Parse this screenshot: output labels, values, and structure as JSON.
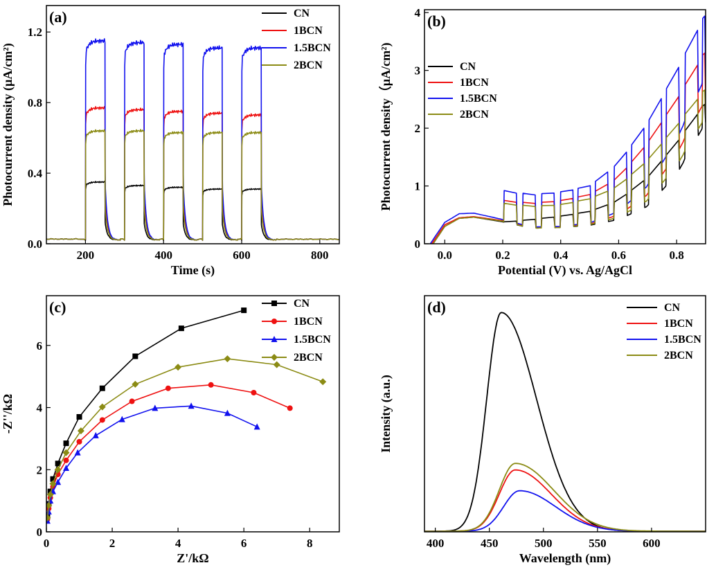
{
  "colors": {
    "CN": "#000000",
    "1BCN": "#ee1111",
    "1.5BCN": "#1111ee",
    "2BCN": "#8b8b14"
  },
  "chart_data": [
    {
      "id": "a",
      "type": "line",
      "panel_label": "(a)",
      "xlabel": "Time (s)",
      "ylabel": "Photocurrent density (µA/cm²)",
      "xlim": [
        100,
        850
      ],
      "ylim": [
        0,
        1.35
      ],
      "xticks": [
        200,
        400,
        600,
        800
      ],
      "yticks": [
        0.0,
        0.4,
        0.8,
        1.2
      ],
      "xtick_labels": [
        "200",
        "400",
        "600",
        "800"
      ],
      "ytick_labels": [
        "0.0",
        "0.4",
        "0.8",
        "1.2"
      ],
      "legend_position": "top-right",
      "light_on_off": [
        [
          200,
          250
        ],
        [
          300,
          350
        ],
        [
          400,
          450
        ],
        [
          500,
          550
        ],
        [
          600,
          650
        ]
      ],
      "series": [
        {
          "name": "CN",
          "dark": 0.02,
          "on_plateau": [
            0.35,
            0.33,
            0.32,
            0.31,
            0.31
          ]
        },
        {
          "name": "1BCN",
          "dark": 0.02,
          "on_plateau": [
            0.77,
            0.76,
            0.75,
            0.74,
            0.73
          ]
        },
        {
          "name": "1.5BCN",
          "dark": 0.02,
          "on_plateau": [
            1.15,
            1.14,
            1.13,
            1.11,
            1.11
          ]
        },
        {
          "name": "2BCN",
          "dark": 0.02,
          "on_plateau": [
            0.64,
            0.64,
            0.63,
            0.63,
            0.63
          ]
        }
      ]
    },
    {
      "id": "b",
      "type": "line",
      "panel_label": "(b)",
      "xlabel": "Potential (V) vs. Ag/AgCl",
      "ylabel": "Photocurrent density（µA/cm²)",
      "xlim": [
        -0.07,
        0.9
      ],
      "ylim": [
        0,
        4.05
      ],
      "xticks": [
        0.0,
        0.2,
        0.4,
        0.6,
        0.8
      ],
      "yticks": [
        0,
        1,
        2,
        3,
        4
      ],
      "xtick_labels": [
        "0.0",
        "0.2",
        "0.4",
        "0.6",
        "0.8"
      ],
      "ytick_labels": [
        "0",
        "1",
        "2",
        "3",
        "4"
      ],
      "legend_position": "top-left",
      "series": [
        {
          "name": "CN",
          "dark_points": [
            [
              -0.04,
              0.0
            ],
            [
              0.0,
              0.3
            ],
            [
              0.05,
              0.44
            ],
            [
              0.1,
              0.46
            ],
            [
              0.2,
              0.38
            ],
            [
              0.3,
              0.27
            ],
            [
              0.4,
              0.28
            ],
            [
              0.5,
              0.32
            ],
            [
              0.6,
              0.42
            ],
            [
              0.7,
              0.65
            ],
            [
              0.8,
              1.2
            ],
            [
              0.9,
              2.1
            ]
          ],
          "light_points": [
            [
              0.21,
              0.38
            ],
            [
              0.3,
              0.42
            ],
            [
              0.4,
              0.48
            ],
            [
              0.5,
              0.56
            ],
            [
              0.6,
              0.75
            ],
            [
              0.7,
              1.15
            ],
            [
              0.8,
              1.75
            ],
            [
              0.9,
              2.45
            ]
          ]
        },
        {
          "name": "1BCN",
          "dark_points": [
            [
              -0.045,
              0.0
            ],
            [
              0.0,
              0.33
            ],
            [
              0.05,
              0.45
            ],
            [
              0.1,
              0.47
            ],
            [
              0.2,
              0.4
            ],
            [
              0.3,
              0.28
            ],
            [
              0.4,
              0.29
            ],
            [
              0.5,
              0.34
            ],
            [
              0.6,
              0.5
            ],
            [
              0.7,
              0.85
            ],
            [
              0.8,
              1.55
            ],
            [
              0.9,
              2.5
            ]
          ],
          "light_points": [
            [
              0.21,
              0.75
            ],
            [
              0.3,
              0.7
            ],
            [
              0.4,
              0.75
            ],
            [
              0.5,
              0.85
            ],
            [
              0.6,
              1.15
            ],
            [
              0.7,
              1.75
            ],
            [
              0.8,
              2.5
            ],
            [
              0.9,
              3.35
            ]
          ]
        },
        {
          "name": "1.5BCN",
          "dark_points": [
            [
              -0.05,
              0.0
            ],
            [
              0.0,
              0.37
            ],
            [
              0.05,
              0.52
            ],
            [
              0.1,
              0.53
            ],
            [
              0.2,
              0.42
            ],
            [
              0.3,
              0.29
            ],
            [
              0.4,
              0.3
            ],
            [
              0.5,
              0.36
            ],
            [
              0.6,
              0.56
            ],
            [
              0.7,
              1.0
            ],
            [
              0.8,
              1.8
            ],
            [
              0.9,
              2.9
            ]
          ],
          "light_points": [
            [
              0.21,
              0.92
            ],
            [
              0.3,
              0.85
            ],
            [
              0.4,
              0.9
            ],
            [
              0.5,
              1.0
            ],
            [
              0.6,
              1.4
            ],
            [
              0.7,
              2.1
            ],
            [
              0.8,
              3.0
            ],
            [
              0.9,
              4.0
            ]
          ]
        },
        {
          "name": "2BCN",
          "dark_points": [
            [
              -0.04,
              0.0
            ],
            [
              0.0,
              0.3
            ],
            [
              0.05,
              0.44
            ],
            [
              0.1,
              0.46
            ],
            [
              0.2,
              0.39
            ],
            [
              0.3,
              0.27
            ],
            [
              0.4,
              0.28
            ],
            [
              0.5,
              0.33
            ],
            [
              0.6,
              0.46
            ],
            [
              0.7,
              0.75
            ],
            [
              0.8,
              1.35
            ],
            [
              0.9,
              2.2
            ]
          ],
          "light_points": [
            [
              0.21,
              0.7
            ],
            [
              0.3,
              0.65
            ],
            [
              0.4,
              0.68
            ],
            [
              0.5,
              0.78
            ],
            [
              0.6,
              1.0
            ],
            [
              0.7,
              1.45
            ],
            [
              0.8,
              2.05
            ],
            [
              0.9,
              2.7
            ]
          ]
        }
      ]
    },
    {
      "id": "c",
      "type": "line",
      "panel_label": "(c)",
      "xlabel": "Z'/kΩ",
      "ylabel": "-Z''/kΩ",
      "xlim": [
        0,
        8.9
      ],
      "ylim": [
        0,
        7.6
      ],
      "xticks": [
        0,
        2,
        4,
        6,
        8
      ],
      "yticks": [
        0,
        2,
        4,
        6
      ],
      "xtick_labels": [
        "0",
        "2",
        "4",
        "6",
        "8"
      ],
      "ytick_labels": [
        "0",
        "2",
        "4",
        "6"
      ],
      "legend_position": "top-right",
      "series": [
        {
          "name": "CN",
          "marker": "square",
          "points": [
            [
              0.03,
              0.5
            ],
            [
              0.07,
              0.9
            ],
            [
              0.12,
              1.3
            ],
            [
              0.2,
              1.7
            ],
            [
              0.35,
              2.2
            ],
            [
              0.6,
              2.85
            ],
            [
              1.0,
              3.7
            ],
            [
              1.7,
              4.62
            ],
            [
              2.7,
              5.65
            ],
            [
              4.1,
              6.55
            ],
            [
              6.0,
              7.13
            ]
          ]
        },
        {
          "name": "1BCN",
          "marker": "circle",
          "points": [
            [
              0.03,
              0.4
            ],
            [
              0.07,
              0.75
            ],
            [
              0.12,
              1.1
            ],
            [
              0.2,
              1.45
            ],
            [
              0.35,
              1.85
            ],
            [
              0.6,
              2.3
            ],
            [
              1.0,
              2.9
            ],
            [
              1.7,
              3.6
            ],
            [
              2.6,
              4.2
            ],
            [
              3.7,
              4.62
            ],
            [
              5.0,
              4.73
            ],
            [
              6.3,
              4.48
            ],
            [
              7.4,
              3.98
            ]
          ]
        },
        {
          "name": "1.5BCN",
          "marker": "triangle",
          "points": [
            [
              0.03,
              0.35
            ],
            [
              0.07,
              0.65
            ],
            [
              0.12,
              1.0
            ],
            [
              0.2,
              1.3
            ],
            [
              0.35,
              1.6
            ],
            [
              0.6,
              2.05
            ],
            [
              0.95,
              2.55
            ],
            [
              1.5,
              3.1
            ],
            [
              2.3,
              3.62
            ],
            [
              3.3,
              3.98
            ],
            [
              4.4,
              4.05
            ],
            [
              5.5,
              3.82
            ],
            [
              6.4,
              3.38
            ]
          ]
        },
        {
          "name": "2BCN",
          "marker": "diamond",
          "points": [
            [
              0.03,
              0.45
            ],
            [
              0.07,
              0.85
            ],
            [
              0.12,
              1.2
            ],
            [
              0.2,
              1.55
            ],
            [
              0.35,
              2.0
            ],
            [
              0.6,
              2.55
            ],
            [
              1.05,
              3.25
            ],
            [
              1.7,
              4.02
            ],
            [
              2.7,
              4.75
            ],
            [
              4.0,
              5.3
            ],
            [
              5.5,
              5.57
            ],
            [
              7.0,
              5.38
            ],
            [
              8.4,
              4.83
            ]
          ]
        }
      ]
    },
    {
      "id": "d",
      "type": "line",
      "panel_label": "(d)",
      "xlabel": "Wavelength (nm)",
      "ylabel": "Intensity (a.u.)",
      "xlim": [
        390,
        650
      ],
      "ylim": [
        0,
        1.08
      ],
      "xticks": [
        400,
        450,
        500,
        550,
        600
      ],
      "yticks": [],
      "xtick_labels": [
        "400",
        "450",
        "500",
        "550",
        "600"
      ],
      "ytick_labels": [],
      "legend_position": "top-right",
      "series": [
        {
          "name": "CN",
          "peak_x": 461,
          "peak_y": 1.0,
          "width_left": 19,
          "width_right": 46
        },
        {
          "name": "1BCN",
          "peak_x": 474,
          "peak_y": 0.28,
          "width_left": 21,
          "width_right": 47
        },
        {
          "name": "1.5BCN",
          "peak_x": 478,
          "peak_y": 0.185,
          "width_left": 21,
          "width_right": 47
        },
        {
          "name": "2BCN",
          "peak_x": 474,
          "peak_y": 0.31,
          "width_left": 21,
          "width_right": 50
        }
      ]
    }
  ]
}
